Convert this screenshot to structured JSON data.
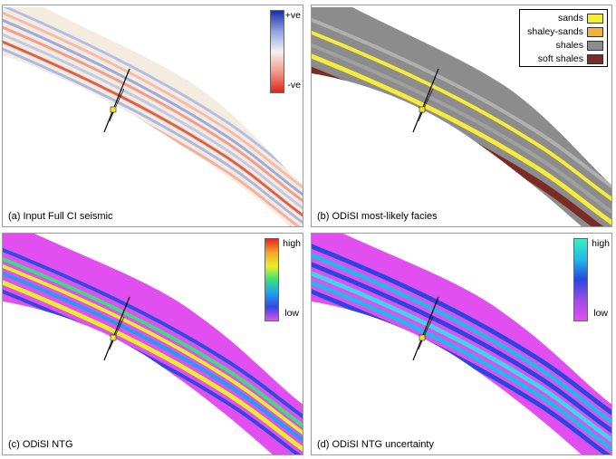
{
  "panels": {
    "a": {
      "caption": "(a) Input Full CI seismic",
      "colorbar": {
        "top_label": "+ve",
        "bottom_label": "-ve",
        "colors": [
          "#1a2ea8",
          "#8fa2e0",
          "#f4f0f0",
          "#f29a86",
          "#e3231e"
        ]
      }
    },
    "b": {
      "caption": "(b) ODiSI most-likely facies",
      "legend": [
        {
          "label": "sands",
          "color": "#f7ec3c"
        },
        {
          "label": "shaley-sands",
          "color": "#f2b33a"
        },
        {
          "label": "shales",
          "color": "#8c8c8c"
        },
        {
          "label": "soft shales",
          "color": "#7a2b25"
        }
      ]
    },
    "c": {
      "caption": "(c) ODiSI NTG",
      "colorbar": {
        "top_label": "high",
        "bottom_label": "low",
        "colors": [
          "#e4261f",
          "#f3a52a",
          "#e9ef28",
          "#3ae07e",
          "#1f9ff0",
          "#3247e0",
          "#e24ff0"
        ]
      }
    },
    "d": {
      "caption": "(d) ODiSI NTG uncertainty",
      "colorbar": {
        "top_label": "high",
        "bottom_label": "low",
        "colors": [
          "#3af0c0",
          "#22b8e8",
          "#2846e0",
          "#a04ae8",
          "#e24ff0"
        ]
      }
    }
  }
}
